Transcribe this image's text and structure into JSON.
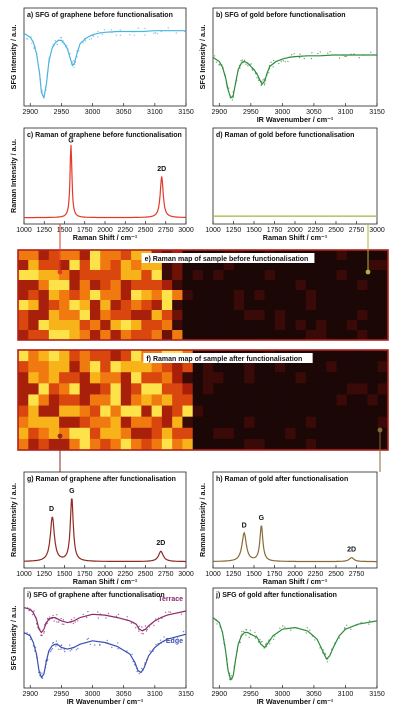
{
  "chart_data": [
    {
      "id": "a",
      "type": "line",
      "title": "a) SFG of graphene before functionalisation",
      "xlabel": "",
      "ylabel": "SFG Intensity / a.u.",
      "xlim": [
        2890,
        3150
      ],
      "xticks": [
        2900,
        2950,
        3000,
        3050,
        3100,
        3150
      ],
      "color": "#4fb3e0",
      "series": [
        {
          "x": [
            2890,
            2900,
            2905,
            2910,
            2915,
            2918,
            2922,
            2926,
            2930,
            2935,
            2940,
            2945,
            2950,
            2955,
            2960,
            2965,
            2968,
            2971,
            2975,
            2980,
            2990,
            3000,
            3010,
            3020,
            3040,
            3060,
            3080,
            3100,
            3120,
            3150
          ],
          "y": [
            0.85,
            0.8,
            0.74,
            0.6,
            0.35,
            0.12,
            0.05,
            0.22,
            0.5,
            0.66,
            0.73,
            0.76,
            0.76,
            0.72,
            0.65,
            0.52,
            0.45,
            0.48,
            0.6,
            0.72,
            0.79,
            0.83,
            0.85,
            0.86,
            0.87,
            0.87,
            0.87,
            0.88,
            0.88,
            0.88
          ]
        }
      ]
    },
    {
      "id": "b",
      "type": "line",
      "title": "b) SFG of gold before functionalisation",
      "xlabel": "IR Wavenumber / cm⁻¹",
      "ylabel": "SFG Intensity / a.u.",
      "xlim": [
        2890,
        3150
      ],
      "xticks": [
        2900,
        2950,
        3000,
        3050,
        3100,
        3150
      ],
      "color": "#2e8a3c",
      "series": [
        {
          "x": [
            2890,
            2900,
            2905,
            2910,
            2914,
            2918,
            2922,
            2926,
            2930,
            2935,
            2940,
            2945,
            2950,
            2955,
            2960,
            2965,
            2968,
            2972,
            2976,
            2980,
            2990,
            3000,
            3010,
            3020,
            3040,
            3060,
            3080,
            3100,
            3120,
            3150
          ],
          "y": [
            0.55,
            0.5,
            0.43,
            0.3,
            0.15,
            0.05,
            0.08,
            0.24,
            0.4,
            0.48,
            0.5,
            0.48,
            0.44,
            0.4,
            0.34,
            0.26,
            0.22,
            0.26,
            0.36,
            0.44,
            0.5,
            0.53,
            0.55,
            0.56,
            0.57,
            0.57,
            0.58,
            0.58,
            0.58,
            0.58
          ]
        }
      ]
    },
    {
      "id": "c",
      "type": "line",
      "title": "c) Raman of graphene before functionalisation",
      "xlabel": "Raman Shift / cm⁻¹",
      "ylabel": "Raman Intensity / a.u.",
      "xlim": [
        1000,
        3000
      ],
      "xticks": [
        1000,
        1250,
        1500,
        1750,
        2000,
        2250,
        2500,
        2750,
        3000
      ],
      "color": "#e23a2a",
      "peaks": [
        {
          "x": 1580,
          "h": 0.92,
          "w": 14
        },
        {
          "x": 2700,
          "h": 0.52,
          "w": 22
        }
      ],
      "baseline": 0.03,
      "peak_labels": [
        {
          "text": "G",
          "x": 1580,
          "y": 0.98
        },
        {
          "text": "2D",
          "x": 2700,
          "y": 0.62
        }
      ]
    },
    {
      "id": "d",
      "type": "line",
      "title": "d) Raman of gold before functionalisation",
      "xlabel": "Raman Shift / cm⁻¹",
      "ylabel": "",
      "xlim": [
        1000,
        3000
      ],
      "xticks": [
        1000,
        1250,
        1500,
        1750,
        2000,
        2250,
        2500,
        2750,
        3000
      ],
      "color": "#a8b43a",
      "peaks": [],
      "baseline": 0.05
    },
    {
      "id": "g",
      "type": "line",
      "title": "g) Raman of graphene after functionalisation",
      "xlabel": "Raman Shift / cm⁻¹",
      "ylabel": "Raman Intensity / a.u.",
      "xlim": [
        1000,
        3000
      ],
      "xticks": [
        1000,
        1250,
        1500,
        1750,
        2000,
        2250,
        2500,
        2750,
        3000
      ],
      "color": "#8e2a22",
      "peaks": [
        {
          "x": 1350,
          "h": 0.56,
          "w": 30
        },
        {
          "x": 1590,
          "h": 0.8,
          "w": 22
        },
        {
          "x": 2690,
          "h": 0.13,
          "w": 35
        }
      ],
      "baseline": 0.03,
      "peak_labels": [
        {
          "text": "D",
          "x": 1340,
          "y": 0.67
        },
        {
          "text": "G",
          "x": 1590,
          "y": 0.9
        },
        {
          "text": "2D",
          "x": 2690,
          "y": 0.24
        }
      ]
    },
    {
      "id": "h",
      "type": "line",
      "title": "h) Raman of gold after functionalisation",
      "xlabel": "Raman Shift / cm⁻¹",
      "ylabel": "Raman Intensity / a.u.",
      "xlim": [
        1000,
        3000
      ],
      "xticks": [
        1000,
        1250,
        1500,
        1750,
        2000,
        2250,
        2500,
        2750
      ],
      "color": "#8a6a3a",
      "peaks": [
        {
          "x": 1380,
          "h": 0.36,
          "w": 32
        },
        {
          "x": 1590,
          "h": 0.45,
          "w": 22
        },
        {
          "x": 2690,
          "h": 0.05,
          "w": 35
        }
      ],
      "baseline": 0.03,
      "peak_labels": [
        {
          "text": "D",
          "x": 1380,
          "y": 0.46
        },
        {
          "text": "G",
          "x": 1590,
          "y": 0.56
        },
        {
          "text": "2D",
          "x": 2690,
          "y": 0.16
        }
      ]
    },
    {
      "id": "i",
      "type": "line",
      "title": "i) SFG of graphene after functionalisation",
      "xlabel": "IR Wavenumber / cm⁻¹",
      "ylabel": "SFG Intensity / a.u.",
      "xlim": [
        2890,
        3150
      ],
      "xticks": [
        2900,
        2950,
        3000,
        3050,
        3100,
        3150
      ],
      "series": [
        {
          "name": "Terrace",
          "color": "#8a2a6a",
          "x": [
            2890,
            2900,
            2905,
            2910,
            2914,
            2918,
            2922,
            2926,
            2930,
            2935,
            2940,
            2945,
            2950,
            2960,
            2970,
            2980,
            3000,
            3020,
            3040,
            3060,
            3070,
            3075,
            3080,
            3085,
            3090,
            3100,
            3110,
            3120,
            3150
          ],
          "y": [
            0.92,
            0.9,
            0.86,
            0.78,
            0.66,
            0.62,
            0.66,
            0.74,
            0.78,
            0.8,
            0.8,
            0.78,
            0.76,
            0.74,
            0.76,
            0.8,
            0.84,
            0.83,
            0.8,
            0.76,
            0.72,
            0.66,
            0.64,
            0.66,
            0.7,
            0.76,
            0.8,
            0.83,
            0.88
          ]
        },
        {
          "name": "Edge",
          "color": "#3a4fb0",
          "x": [
            2890,
            2900,
            2905,
            2910,
            2914,
            2918,
            2922,
            2926,
            2930,
            2935,
            2940,
            2945,
            2950,
            2960,
            2970,
            2980,
            3000,
            3020,
            3040,
            3060,
            3068,
            3073,
            3078,
            3083,
            3090,
            3100,
            3110,
            3120,
            3150
          ],
          "y": [
            0.62,
            0.58,
            0.5,
            0.36,
            0.16,
            0.08,
            0.12,
            0.28,
            0.4,
            0.46,
            0.48,
            0.47,
            0.44,
            0.42,
            0.44,
            0.48,
            0.52,
            0.5,
            0.45,
            0.36,
            0.26,
            0.16,
            0.14,
            0.2,
            0.34,
            0.44,
            0.5,
            0.54,
            0.6
          ]
        }
      ]
    },
    {
      "id": "j",
      "type": "line",
      "title": "j) SFG of gold after functionalisation",
      "xlabel": "IR Wavenumber / cm⁻¹",
      "ylabel": "",
      "xlim": [
        2890,
        3150
      ],
      "xticks": [
        2900,
        2950,
        3000,
        3050,
        3100,
        3150
      ],
      "color": "#2e8a3c",
      "series": [
        {
          "x": [
            2890,
            2900,
            2905,
            2910,
            2914,
            2918,
            2922,
            2926,
            2930,
            2935,
            2940,
            2945,
            2950,
            2960,
            2966,
            2972,
            2978,
            2985,
            3000,
            3020,
            3040,
            3055,
            3065,
            3070,
            3075,
            3082,
            3090,
            3100,
            3120,
            3150
          ],
          "y": [
            0.8,
            0.74,
            0.62,
            0.4,
            0.16,
            0.05,
            0.1,
            0.3,
            0.48,
            0.58,
            0.62,
            0.62,
            0.6,
            0.56,
            0.48,
            0.44,
            0.5,
            0.58,
            0.66,
            0.68,
            0.64,
            0.54,
            0.38,
            0.3,
            0.34,
            0.46,
            0.58,
            0.66,
            0.72,
            0.76
          ]
        }
      ]
    },
    {
      "id": "e",
      "type": "heatmap",
      "title": "e) Raman map of sample before functionalisation",
      "rows": 9,
      "cols": 36,
      "bright_cols": 16,
      "seed": 7
    },
    {
      "id": "f",
      "type": "heatmap",
      "title": "f) Raman map of sample after functionalisation",
      "rows": 9,
      "cols": 36,
      "bright_cols": 17,
      "seed": 19
    }
  ]
}
